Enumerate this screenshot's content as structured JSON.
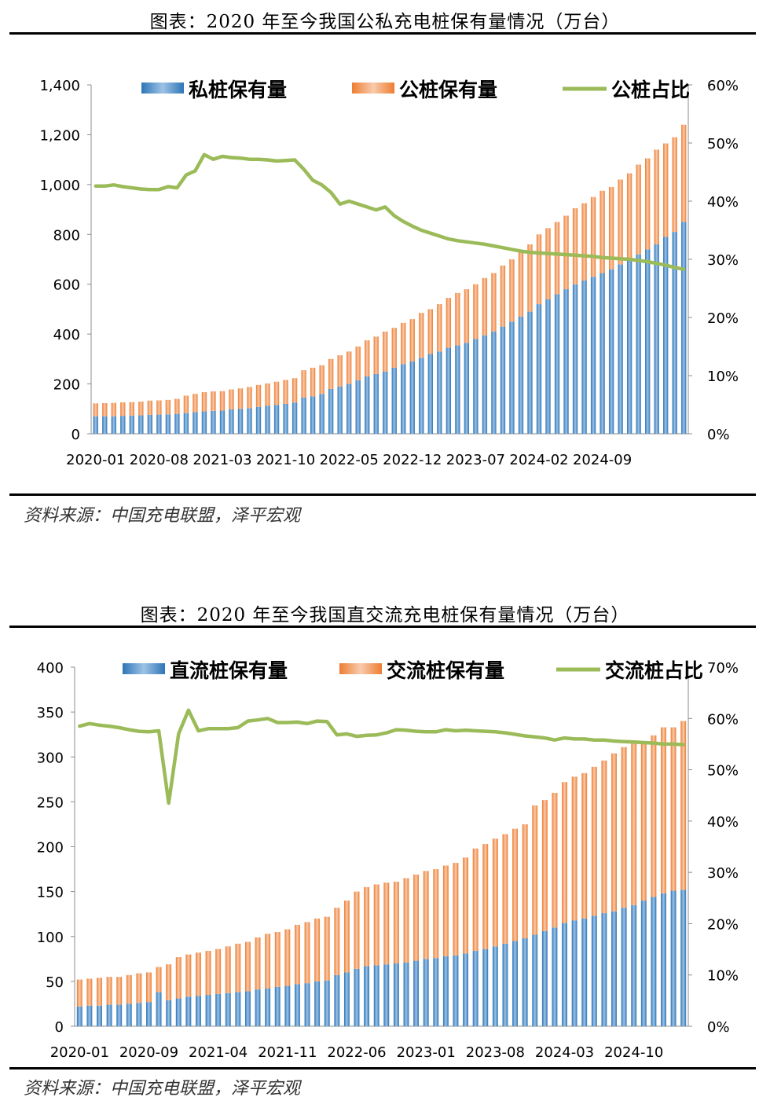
{
  "charts": [
    {
      "title": "图表：2020 年至今我国公私充电桩保有量情况（万台）",
      "source": "资料来源：中国充电联盟，泽平宏观",
      "chart_data": {
        "type": "bar",
        "stacked": true,
        "x_start": "2020-01",
        "x_tick_labels": [
          "2020-01",
          "2020-08",
          "2021-03",
          "2021-10",
          "2022-05",
          "2022-12",
          "2023-07",
          "2024-02",
          "2024-09"
        ],
        "y_left": {
          "min": 0,
          "max": 1400,
          "ticks": [
            "0",
            "200",
            "400",
            "600",
            "800",
            "1,000",
            "1,200",
            "1,400"
          ]
        },
        "y_right": {
          "min": 0,
          "max": 60,
          "ticks": [
            "0%",
            "10%",
            "20%",
            "30%",
            "40%",
            "50%",
            "60%"
          ]
        },
        "legend_position": "top",
        "series": [
          {
            "name": "私桩保有量",
            "type": "bar",
            "axis": "left",
            "color": "#2e75b6",
            "values": [
              70,
              70,
              70,
              72,
              73,
              74,
              76,
              77,
              78,
              80,
              83,
              87,
              90,
              92,
              93,
              98,
              100,
              103,
              108,
              112,
              116,
              120,
              125,
              145,
              150,
              160,
              180,
              190,
              200,
              215,
              230,
              240,
              250,
              265,
              280,
              290,
              305,
              320,
              330,
              345,
              355,
              365,
              380,
              395,
              410,
              430,
              450,
              470,
              490,
              520,
              540,
              560,
              580,
              600,
              615,
              630,
              645,
              660,
              680,
              695,
              720,
              740,
              760,
              790,
              810,
              850
            ]
          },
          {
            "name": "公桩保有量",
            "type": "bar",
            "axis": "left",
            "color": "#ed7d31",
            "values": [
              52,
              53,
              54,
              54,
              54,
              55,
              57,
              57,
              58,
              60,
              70,
              73,
              77,
              78,
              78,
              80,
              82,
              85,
              88,
              90,
              93,
              96,
              98,
              110,
              115,
              115,
              120,
              125,
              130,
              135,
              145,
              150,
              160,
              160,
              165,
              170,
              180,
              180,
              190,
              200,
              210,
              215,
              220,
              230,
              235,
              245,
              250,
              260,
              270,
              280,
              285,
              290,
              295,
              305,
              310,
              320,
              330,
              330,
              340,
              350,
              360,
              365,
              380,
              375,
              380,
              390
            ]
          },
          {
            "name": "公桩占比",
            "type": "line",
            "axis": "right",
            "color": "#9bbb59",
            "values": [
              42.6,
              42.6,
              42.8,
              42.5,
              42.3,
              42.1,
              42.0,
              42.0,
              42.5,
              42.3,
              44.5,
              45.2,
              48.0,
              47.2,
              47.7,
              47.5,
              47.4,
              47.2,
              47.2,
              47.1,
              46.9,
              47.0,
              47.1,
              45.5,
              43.6,
              42.8,
              41.5,
              39.5,
              40.0,
              39.5,
              39.0,
              38.5,
              39.0,
              37.5,
              36.5,
              35.7,
              35.0,
              34.5,
              34.0,
              33.5,
              33.2,
              33.0,
              32.8,
              32.6,
              32.3,
              32.0,
              31.7,
              31.4,
              31.2,
              31.1,
              31.0,
              30.9,
              30.8,
              30.7,
              30.6,
              30.5,
              30.3,
              30.2,
              30.1,
              30.0,
              29.8,
              29.6,
              29.3,
              29.0,
              28.6,
              28.3
            ]
          }
        ]
      }
    },
    {
      "title": "图表：2020 年至今我国直交流充电桩保有量情况（万台）",
      "source": "资料来源：中国充电联盟，泽平宏观",
      "chart_data": {
        "type": "bar",
        "stacked": true,
        "x_start": "2020-01",
        "x_tick_labels": [
          "2020-01",
          "2020-09",
          "2021-04",
          "2021-11",
          "2022-06",
          "2023-01",
          "2023-08",
          "2024-03",
          "2024-10"
        ],
        "y_left": {
          "min": 0,
          "max": 400,
          "ticks": [
            "0",
            "50",
            "100",
            "150",
            "200",
            "250",
            "300",
            "350",
            "400"
          ]
        },
        "y_right": {
          "min": 0,
          "max": 70,
          "ticks": [
            "0%",
            "10%",
            "20%",
            "30%",
            "40%",
            "50%",
            "60%",
            "70%"
          ]
        },
        "legend_position": "top",
        "series": [
          {
            "name": "直流桩保有量",
            "type": "bar",
            "axis": "left",
            "color": "#2e75b6",
            "values": [
              22,
              23,
              23,
              24,
              24,
              25,
              26,
              27,
              38,
              29,
              31,
              33,
              34,
              35,
              36,
              37,
              38,
              39,
              41,
              42,
              44,
              45,
              47,
              48,
              50,
              51,
              57,
              60,
              64,
              67,
              68,
              69,
              70,
              71,
              73,
              75,
              76,
              78,
              79,
              81,
              84,
              86,
              89,
              92,
              95,
              98,
              102,
              106,
              110,
              115,
              118,
              120,
              123,
              126,
              128,
              132,
              135,
              140,
              144,
              148,
              151,
              152
            ]
          },
          {
            "name": "交流桩保有量",
            "type": "bar",
            "axis": "left",
            "color": "#ed7d31",
            "values": [
              30,
              30,
              31,
              31,
              31,
              32,
              33,
              33,
              28,
              40,
              46,
              47,
              48,
              49,
              50,
              52,
              54,
              55,
              58,
              61,
              61,
              63,
              66,
              68,
              70,
              71,
              75,
              80,
              86,
              88,
              90,
              91,
              91,
              94,
              96,
              98,
              99,
              101,
              103,
              107,
              114,
              117,
              120,
              122,
              125,
              127,
              144,
              146,
              150,
              157,
              160,
              162,
              166,
              170,
              176,
              179,
              182,
              177,
              180,
              185,
              182,
              188
            ]
          },
          {
            "name": "交流桩占比",
            "type": "line",
            "axis": "right",
            "color": "#9bbb59",
            "values": [
              58.5,
              59.0,
              58.7,
              58.5,
              58.2,
              57.8,
              57.5,
              57.4,
              57.6,
              43.5,
              57.0,
              61.6,
              57.6,
              58.0,
              58.0,
              58.0,
              58.2,
              59.5,
              59.7,
              60.0,
              59.2,
              59.2,
              59.3,
              59.0,
              59.5,
              59.4,
              56.8,
              57.0,
              56.5,
              56.7,
              56.8,
              57.2,
              57.8,
              57.7,
              57.5,
              57.4,
              57.4,
              57.8,
              57.6,
              57.7,
              57.6,
              57.5,
              57.4,
              57.2,
              56.9,
              56.6,
              56.4,
              56.2,
              55.8,
              56.2,
              56.0,
              56.0,
              55.8,
              55.8,
              55.6,
              55.5,
              55.4,
              55.3,
              55.2,
              55.0,
              55.0,
              54.9
            ]
          }
        ]
      }
    }
  ]
}
